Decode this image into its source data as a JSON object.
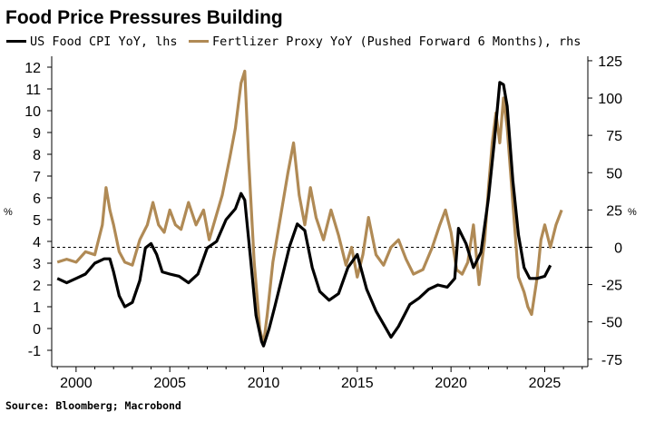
{
  "chart_data": {
    "type": "line",
    "title": "Food Price Pressures Building",
    "source": "Source: Bloomberg; Macrobond",
    "left_unit": "%",
    "right_unit": "%",
    "xlim": [
      1998.7,
      2027.3
    ],
    "ylim_left": [
      -1.75,
      12.5
    ],
    "ylim_right": [
      -80,
      128
    ],
    "x_ticks": [
      2000,
      2005,
      2010,
      2015,
      2020,
      2025
    ],
    "left_ticks": [
      -1,
      0,
      1,
      2,
      3,
      4,
      5,
      6,
      7,
      8,
      9,
      10,
      11,
      12
    ],
    "right_ticks": [
      -75,
      -50,
      -25,
      0,
      25,
      50,
      75,
      100,
      125
    ],
    "zero_reference_line": {
      "axis": "right",
      "value": 0,
      "style": "dashed"
    },
    "series": [
      {
        "name": "US Food CPI YoY, lhs",
        "axis": "left",
        "color": "#000000",
        "x": [
          1999.0,
          1999.5,
          2000.0,
          2000.5,
          2001.0,
          2001.5,
          2001.8,
          2002.0,
          2002.3,
          2002.6,
          2003.0,
          2003.4,
          2003.7,
          2004.0,
          2004.3,
          2004.6,
          2005.0,
          2005.5,
          2006.0,
          2006.5,
          2007.0,
          2007.5,
          2008.0,
          2008.5,
          2008.8,
          2009.0,
          2009.3,
          2009.6,
          2009.9,
          2010.0,
          2010.3,
          2010.6,
          2011.0,
          2011.4,
          2011.8,
          2012.2,
          2012.6,
          2013.0,
          2013.5,
          2014.0,
          2014.5,
          2015.0,
          2015.5,
          2016.0,
          2016.4,
          2016.8,
          2017.2,
          2017.8,
          2018.3,
          2018.8,
          2019.3,
          2019.8,
          2020.2,
          2020.4,
          2020.8,
          2021.2,
          2021.6,
          2022.0,
          2022.3,
          2022.6,
          2022.8,
          2023.0,
          2023.3,
          2023.6,
          2023.9,
          2024.2,
          2024.6,
          2025.0,
          2025.3
        ],
        "values": [
          2.3,
          2.1,
          2.3,
          2.5,
          3.0,
          3.2,
          3.2,
          2.6,
          1.5,
          1.0,
          1.2,
          2.2,
          3.7,
          3.9,
          3.4,
          2.6,
          2.5,
          2.4,
          2.1,
          2.5,
          3.7,
          4.0,
          5.0,
          5.5,
          6.2,
          5.9,
          3.3,
          0.6,
          -0.6,
          -0.8,
          0.0,
          1.0,
          2.4,
          3.8,
          4.8,
          4.5,
          2.8,
          1.7,
          1.3,
          1.6,
          2.8,
          3.4,
          1.8,
          0.8,
          0.2,
          -0.4,
          0.1,
          1.1,
          1.4,
          1.8,
          2.0,
          1.9,
          2.3,
          4.6,
          3.9,
          2.8,
          3.5,
          6.0,
          8.5,
          11.3,
          11.2,
          10.2,
          6.8,
          4.3,
          2.8,
          2.3,
          2.3,
          2.4,
          2.9
        ]
      },
      {
        "name": "Fertlizer Proxy YoY (Pushed Forward 6 Months), rhs",
        "axis": "right",
        "color": "#b08a55",
        "x": [
          1999.0,
          1999.5,
          2000.0,
          2000.5,
          2001.0,
          2001.4,
          2001.6,
          2001.8,
          2002.0,
          2002.3,
          2002.6,
          2003.0,
          2003.4,
          2003.8,
          2004.1,
          2004.4,
          2004.7,
          2005.0,
          2005.3,
          2005.6,
          2006.0,
          2006.4,
          2006.8,
          2007.1,
          2007.4,
          2007.8,
          2008.2,
          2008.5,
          2008.8,
          2009.0,
          2009.2,
          2009.5,
          2009.8,
          2010.0,
          2010.2,
          2010.5,
          2010.9,
          2011.3,
          2011.6,
          2011.9,
          2012.2,
          2012.5,
          2012.8,
          2013.2,
          2013.6,
          2014.0,
          2014.4,
          2014.7,
          2015.0,
          2015.3,
          2015.6,
          2016.0,
          2016.4,
          2016.8,
          2017.2,
          2017.6,
          2018.0,
          2018.5,
          2019.0,
          2019.4,
          2019.7,
          2020.0,
          2020.3,
          2020.6,
          2020.9,
          2021.2,
          2021.5,
          2021.8,
          2022.0,
          2022.2,
          2022.4,
          2022.6,
          2022.8,
          2023.0,
          2023.3,
          2023.6,
          2023.9,
          2024.1,
          2024.3,
          2024.6,
          2024.8,
          2025.0,
          2025.3,
          2025.6,
          2025.9
        ],
        "values": [
          -10,
          -8,
          -10,
          -3,
          -5,
          15,
          40,
          25,
          15,
          -3,
          -10,
          -12,
          5,
          15,
          30,
          15,
          10,
          25,
          15,
          12,
          30,
          15,
          25,
          5,
          18,
          35,
          60,
          80,
          110,
          118,
          60,
          -10,
          -55,
          -65,
          -45,
          -10,
          20,
          50,
          70,
          35,
          15,
          40,
          20,
          5,
          25,
          8,
          -12,
          0,
          -20,
          -5,
          20,
          -5,
          -12,
          0,
          5,
          -8,
          -18,
          -15,
          0,
          15,
          25,
          10,
          -15,
          -18,
          -10,
          15,
          -25,
          5,
          40,
          70,
          90,
          70,
          100,
          80,
          30,
          -20,
          -30,
          -40,
          -45,
          -20,
          5,
          15,
          0,
          15,
          25
        ]
      }
    ]
  }
}
